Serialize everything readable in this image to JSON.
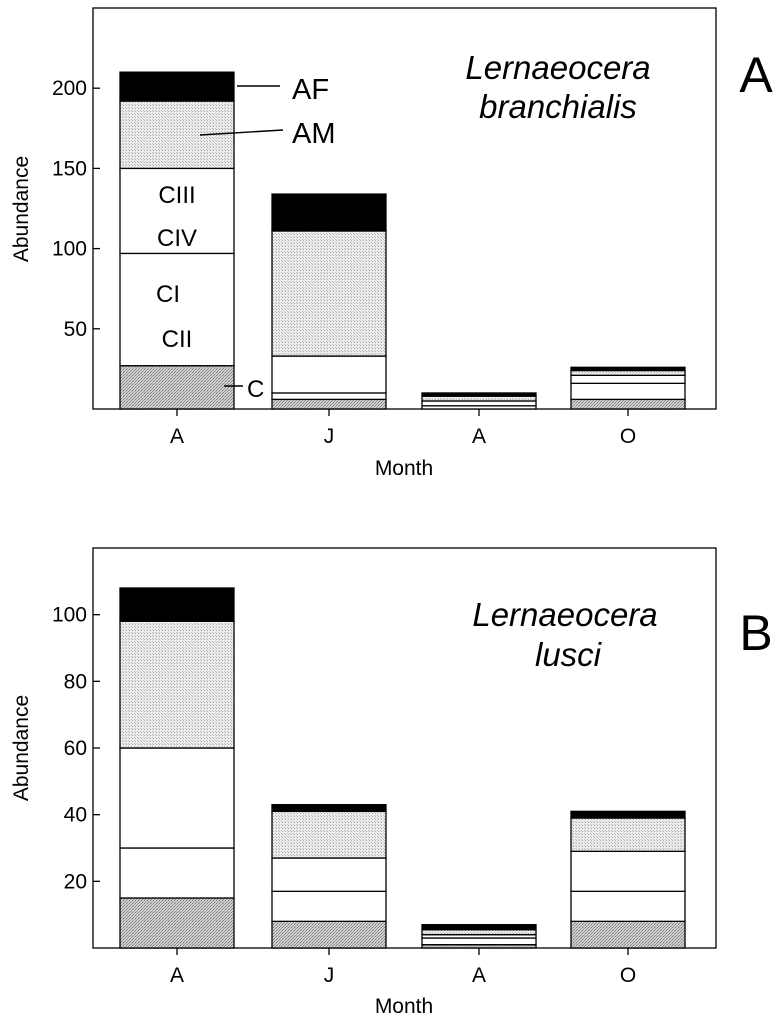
{
  "colors": {
    "background": "#ffffff",
    "ink": "#000000",
    "stipple": "#bdbdbd",
    "stipple_light": "#e0e0e0"
  },
  "chart_data": [
    {
      "type": "bar",
      "stacked": true,
      "panel_letter": "A",
      "title_lines": [
        "Lernaeocera",
        "branchialis"
      ],
      "xlabel": "Month",
      "ylabel": "Abundance",
      "categories": [
        "A",
        "J",
        "A",
        "O"
      ],
      "ylim": [
        0,
        250
      ],
      "yticks": [
        50,
        100,
        150,
        200
      ],
      "grid": false,
      "legend": "none",
      "series": [
        {
          "name": "C",
          "fill": "stipple",
          "values": [
            27,
            6,
            0,
            6
          ]
        },
        {
          "name": "CI / CII",
          "fill": "white",
          "values": [
            70,
            4,
            2,
            10
          ]
        },
        {
          "name": "CIII / CIV",
          "fill": "white",
          "values": [
            53,
            23,
            3,
            5
          ]
        },
        {
          "name": "AM",
          "fill": "stipple_light",
          "values": [
            42,
            78,
            3,
            3
          ]
        },
        {
          "name": "AF",
          "fill": "black",
          "values": [
            18,
            23,
            2,
            2
          ]
        }
      ],
      "annotations": {
        "inside_labels": [
          [
            "CIII",
            "CIV"
          ],
          [
            "CI",
            "CII"
          ]
        ],
        "pointer_labels": [
          "AF",
          "AM",
          "C"
        ]
      }
    },
    {
      "type": "bar",
      "stacked": true,
      "panel_letter": "B",
      "title_lines": [
        "Lernaeocera",
        "lusci"
      ],
      "xlabel": "Month",
      "ylabel": "Abundance",
      "categories": [
        "A",
        "J",
        "A",
        "O"
      ],
      "ylim": [
        0,
        120
      ],
      "yticks": [
        20,
        40,
        60,
        80,
        100
      ],
      "grid": false,
      "legend": "none",
      "series": [
        {
          "name": "C",
          "fill": "stipple",
          "values": [
            15,
            8,
            1,
            8
          ]
        },
        {
          "name": "CI / CII",
          "fill": "white",
          "values": [
            15,
            9,
            2,
            9
          ]
        },
        {
          "name": "CIII / CIV",
          "fill": "white",
          "values": [
            30,
            10,
            1,
            12
          ]
        },
        {
          "name": "AM",
          "fill": "stipple_light",
          "values": [
            38,
            14,
            1.5,
            10
          ]
        },
        {
          "name": "AF",
          "fill": "black",
          "values": [
            10,
            2,
            1.5,
            2
          ]
        }
      ]
    }
  ]
}
